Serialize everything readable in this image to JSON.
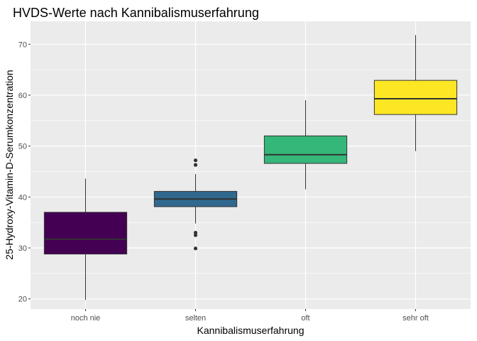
{
  "chart_data": {
    "type": "boxplot",
    "title": "HVDS-Werte nach Kannibalismuserfahrung",
    "xlabel": "Kannibalismuserfahrung",
    "ylabel": "25-Hydroxy-Vitamin-D-Serumkonzentration",
    "ylim": [
      18,
      74.5
    ],
    "yticks": [
      20,
      30,
      40,
      50,
      60,
      70
    ],
    "grid": true,
    "legend": "none",
    "categories": [
      "noch nie",
      "selten",
      "oft",
      "sehr oft"
    ],
    "boxes": [
      {
        "category": "noch nie",
        "whisker_low": 19.8,
        "q1": 28.8,
        "median": 31.7,
        "q3": 37.0,
        "whisker_high": 43.6,
        "outliers": [],
        "color": "#440154"
      },
      {
        "category": "selten",
        "whisker_low": 34.8,
        "q1": 38.1,
        "median": 39.6,
        "q3": 41.1,
        "whisker_high": 44.5,
        "outliers": [
          47.2,
          46.3,
          33.0,
          32.5,
          29.9
        ],
        "color": "#31688E"
      },
      {
        "category": "oft",
        "whisker_low": 41.5,
        "q1": 46.6,
        "median": 48.3,
        "q3": 52.0,
        "whisker_high": 59.0,
        "outliers": [],
        "color": "#35B779"
      },
      {
        "category": "sehr oft",
        "whisker_low": 49.0,
        "q1": 56.2,
        "median": 59.3,
        "q3": 62.9,
        "whisker_high": 71.8,
        "outliers": [],
        "color": "#FDE725"
      }
    ]
  }
}
